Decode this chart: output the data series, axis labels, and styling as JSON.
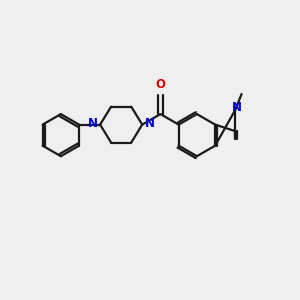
{
  "bg_color": "#efefef",
  "bond_color": "#1a1a1a",
  "N_color": "#0000dd",
  "O_color": "#dd0000",
  "line_width": 1.6,
  "font_size": 8.5,
  "fig_size": [
    3.0,
    3.0
  ],
  "dpi": 100,
  "xlim": [
    -1.0,
    11.0
  ],
  "ylim": [
    -1.0,
    8.0
  ]
}
